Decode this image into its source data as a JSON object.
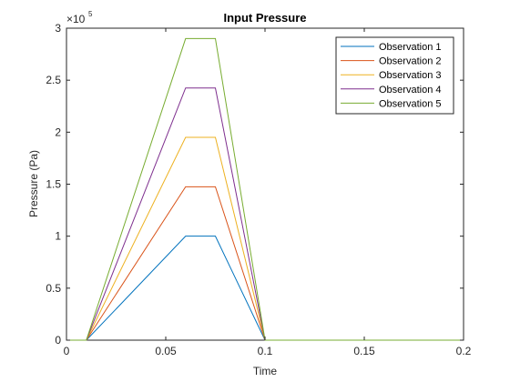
{
  "chart_data": {
    "type": "line",
    "title": "Input Pressure",
    "xlabel": "Time",
    "ylabel": "Pressure (Pa)",
    "exponent_base": "×10",
    "exponent_power": "5",
    "xlim": [
      0,
      0.2
    ],
    "ylim": [
      0,
      3
    ],
    "y_scale_note": "values shown in units of 1e5 Pa",
    "xticks": [
      0,
      0.05,
      0.1,
      0.15,
      0.2
    ],
    "xtick_labels": [
      "0",
      "0.05",
      "0.1",
      "0.15",
      "0.2"
    ],
    "yticks": [
      0,
      0.5,
      1,
      1.5,
      2,
      2.5,
      3
    ],
    "ytick_labels": [
      "0",
      "0.5",
      "1",
      "1.5",
      "2",
      "2.5",
      "3"
    ],
    "grid": false,
    "legend_position": "top-right",
    "x": [
      0,
      0.01,
      0.06,
      0.075,
      0.1,
      0.2
    ],
    "series": [
      {
        "name": "Observation 1",
        "color": "#0072BD",
        "values": [
          0,
          0,
          1.0,
          1.0,
          0,
          0
        ]
      },
      {
        "name": "Observation 2",
        "color": "#D95319",
        "values": [
          0,
          0,
          1.475,
          1.475,
          0,
          0
        ]
      },
      {
        "name": "Observation 3",
        "color": "#EDB120",
        "values": [
          0,
          0,
          1.95,
          1.95,
          0,
          0
        ]
      },
      {
        "name": "Observation 4",
        "color": "#7E2F8E",
        "values": [
          0,
          0,
          2.425,
          2.425,
          0,
          0
        ]
      },
      {
        "name": "Observation 5",
        "color": "#77AC30",
        "values": [
          0,
          0,
          2.9,
          2.9,
          0,
          0
        ]
      }
    ]
  }
}
